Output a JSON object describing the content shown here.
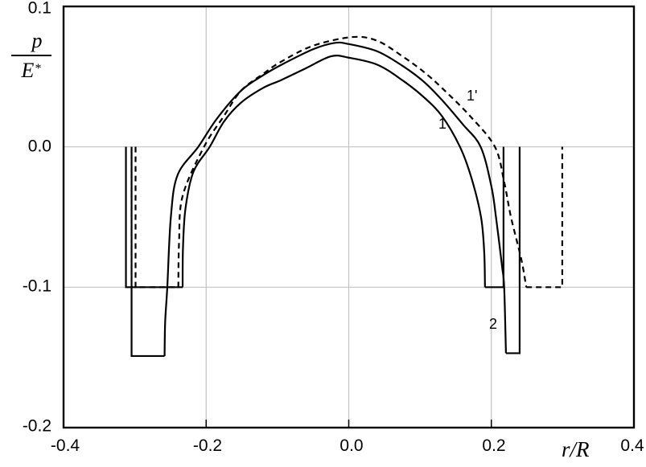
{
  "figure": {
    "background": "#ffffff",
    "border_color": "#000000",
    "grid_color": "#c2c2c2",
    "curve_color": "#000000"
  },
  "chart_data": {
    "type": "line",
    "title": "",
    "xlabel": "r/R",
    "ylabel_numerator": "p",
    "ylabel_denominator": "E",
    "ylabel_denominator_sup": "*",
    "xlim": [
      -0.4,
      0.4
    ],
    "ylim": [
      -0.2,
      0.1
    ],
    "x_ticks": [
      -0.4,
      -0.2,
      0.0,
      0.2,
      0.4
    ],
    "x_tick_labels": [
      "-0.4",
      "-0.2",
      "0.0",
      "0.2",
      "0.4"
    ],
    "y_ticks": [
      0.1,
      0.0,
      -0.1,
      -0.2
    ],
    "y_tick_labels": [
      "0.1",
      "0.0",
      "-0.1",
      "-0.2"
    ],
    "grid_x": [
      -0.2,
      0.0,
      0.2
    ],
    "grid_y": [
      0.0,
      -0.1
    ],
    "grid_on": true,
    "legend_position": "none",
    "series": [
      {
        "name": "curve-1",
        "label": "1",
        "style": "solid",
        "description": "pressure hump with adhesive wells at depth -0.1",
        "points": [
          [
            -0.233,
            -0.1
          ],
          [
            -0.2325,
            -0.072
          ],
          [
            -0.229,
            -0.044
          ],
          [
            -0.218,
            -0.018
          ],
          [
            -0.195,
            0.0
          ],
          [
            -0.175,
            0.018
          ],
          [
            -0.151,
            0.0315
          ],
          [
            -0.12,
            0.042
          ],
          [
            -0.095,
            0.0475
          ],
          [
            -0.06,
            0.056
          ],
          [
            -0.025,
            0.0645
          ],
          [
            0.0,
            0.0635
          ],
          [
            0.04,
            0.0585
          ],
          [
            0.075,
            0.0475
          ],
          [
            0.105,
            0.0355
          ],
          [
            0.131,
            0.0217
          ],
          [
            0.156,
            0.0
          ],
          [
            0.172,
            -0.022
          ],
          [
            0.1855,
            -0.05
          ],
          [
            0.19,
            -0.075
          ],
          [
            0.1911,
            -0.1
          ]
        ],
        "wells": [
          [
            [
              -0.3125,
              0.0
            ],
            [
              -0.3125,
              -0.1
            ],
            [
              -0.233,
              -0.1
            ]
          ],
          [
            [
              0.1911,
              -0.1
            ],
            [
              0.2171,
              -0.1
            ],
            [
              0.2171,
              0.0
            ]
          ]
        ]
      },
      {
        "name": "curve-2",
        "label": "2",
        "style": "solid",
        "description": "pressure hump with deeper adhesive wells at depth -0.15",
        "points": [
          [
            -0.2583,
            -0.149
          ],
          [
            -0.2575,
            -0.125
          ],
          [
            -0.2545,
            -0.1
          ],
          [
            -0.2495,
            -0.05
          ],
          [
            -0.24,
            -0.02
          ],
          [
            -0.211,
            0.0
          ],
          [
            -0.185,
            0.02
          ],
          [
            -0.151,
            0.04
          ],
          [
            -0.12,
            0.051
          ],
          [
            -0.095,
            0.0583
          ],
          [
            -0.05,
            0.0695
          ],
          [
            -0.02,
            0.074
          ],
          [
            0.0,
            0.0732
          ],
          [
            0.04,
            0.068
          ],
          [
            0.075,
            0.0578
          ],
          [
            0.105,
            0.0465
          ],
          [
            0.131,
            0.0332
          ],
          [
            0.16,
            0.016
          ],
          [
            0.185,
            0.0
          ],
          [
            0.2,
            -0.028
          ],
          [
            0.2065,
            -0.05
          ],
          [
            0.215,
            -0.085
          ],
          [
            0.218,
            -0.1
          ],
          [
            0.2205,
            -0.147
          ]
        ],
        "wells": [
          [
            [
              -0.3046,
              0.0
            ],
            [
              -0.3046,
              -0.149
            ],
            [
              -0.2583,
              -0.149
            ]
          ],
          [
            [
              0.2205,
              -0.147
            ],
            [
              0.2397,
              -0.147
            ],
            [
              0.2397,
              0.0
            ]
          ]
        ]
      },
      {
        "name": "curve-1-prime",
        "label": "1'",
        "style": "dashed",
        "description": "dashed pressure hump with adhesive wells at depth -0.1",
        "points": [
          [
            -0.239,
            -0.1
          ],
          [
            -0.238,
            -0.068
          ],
          [
            -0.233,
            -0.035
          ],
          [
            -0.203,
            0.0
          ],
          [
            -0.175,
            0.022
          ],
          [
            -0.151,
            0.04
          ],
          [
            -0.12,
            0.052
          ],
          [
            -0.095,
            0.0606
          ],
          [
            -0.05,
            0.072
          ],
          [
            0.005,
            0.0782
          ],
          [
            0.04,
            0.0755
          ],
          [
            0.075,
            0.0646
          ],
          [
            0.105,
            0.0535
          ],
          [
            0.131,
            0.0418
          ],
          [
            0.17,
            0.022
          ],
          [
            0.205,
            0.0
          ],
          [
            0.218,
            -0.025
          ],
          [
            0.2275,
            -0.05
          ],
          [
            0.242,
            -0.08
          ],
          [
            0.249,
            -0.1
          ]
        ],
        "wells": [
          [
            [
              -0.299,
              0.0
            ],
            [
              -0.299,
              -0.1
            ],
            [
              -0.239,
              -0.1
            ]
          ],
          [
            [
              0.249,
              -0.1
            ],
            [
              0.2995,
              -0.1
            ],
            [
              0.2995,
              0.0
            ]
          ]
        ]
      }
    ]
  }
}
